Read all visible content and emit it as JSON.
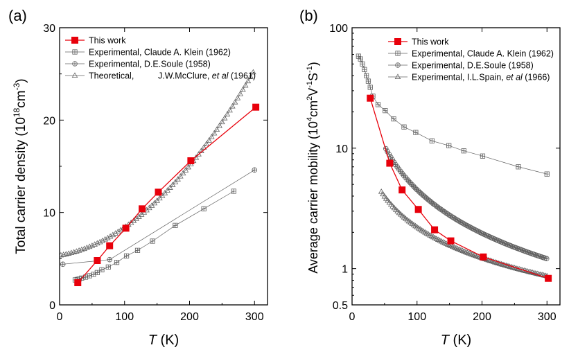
{
  "chart_data": [
    {
      "panel_label": "(a)",
      "type": "line",
      "xlabel_italic": "T",
      "xlabel_unit": " (K)",
      "ylabel_main": "Total carrier density (10",
      "ylabel_sup1": "18",
      "ylabel_mid": "cm",
      "ylabel_sup2": "-3",
      "ylabel_end": ")",
      "xlim": [
        0,
        320
      ],
      "ylim": [
        0,
        30
      ],
      "xticks": [
        0,
        100,
        200,
        300
      ],
      "yticks": [
        0,
        10,
        20,
        30
      ],
      "legend_position": "top-left",
      "series": [
        {
          "legend": "This work",
          "marker": "filled-square",
          "color": "#e8000b",
          "x": [
            28,
            58,
            77,
            102,
            127,
            152,
            202,
            302
          ],
          "y": [
            2.4,
            4.8,
            6.4,
            8.3,
            10.4,
            12.2,
            15.6,
            21.4
          ]
        },
        {
          "legend": "Experimental, Claude A. Klein (1962)",
          "marker": "square-plus",
          "color": "#606060",
          "x": [
            24,
            27,
            30,
            34,
            40,
            46,
            52,
            58,
            65,
            75,
            88,
            103,
            120,
            143,
            178,
            222,
            268
          ],
          "y": [
            2.7,
            2.75,
            2.8,
            2.9,
            3.0,
            3.15,
            3.3,
            3.5,
            3.8,
            4.1,
            4.6,
            5.3,
            5.9,
            6.9,
            8.6,
            10.4,
            12.3
          ]
        },
        {
          "legend": "Experimental, D.E.Soule (1958)",
          "marker": "circle-plus",
          "color": "#606060",
          "x": [
            5,
            77,
            300
          ],
          "y": [
            4.4,
            4.9,
            14.6
          ]
        },
        {
          "legend": "Theoretical,",
          "legend_tail_plain": "J.W.McClure, ",
          "legend_tail_italic": "et al",
          "legend_tail_end": " (1961)",
          "marker": "triangle",
          "color": "#606060",
          "x_start": 2,
          "x_end": 300,
          "x_step": 4,
          "y_model": "5.35 + 0.012*x + 0.000183*x^2"
        }
      ]
    },
    {
      "panel_label": "(b)",
      "type": "line",
      "yscale": "log",
      "xlabel_italic": "T",
      "xlabel_unit": " (K)",
      "ylabel_main": "Average carrier mobility (10",
      "ylabel_sup1": "4",
      "ylabel_mid": "cm",
      "ylabel_sup2": "2",
      "ylabel_mid2": "V",
      "ylabel_sup3": "-1",
      "ylabel_mid3": "S",
      "ylabel_sup4": "-1",
      "ylabel_end": ")",
      "xlim": [
        0,
        320
      ],
      "ylim": [
        0.5,
        100
      ],
      "xticks": [
        0,
        100,
        200,
        300
      ],
      "yticks": [
        0.5,
        1,
        10,
        100
      ],
      "ytick_labels": [
        "0.5",
        "1",
        "10",
        "100"
      ],
      "legend_position": "top-right",
      "series": [
        {
          "legend": "This work",
          "marker": "filled-square",
          "color": "#e8000b",
          "x": [
            28,
            58,
            77,
            102,
            127,
            152,
            202,
            302
          ],
          "y": [
            26,
            7.5,
            4.5,
            3.1,
            2.1,
            1.7,
            1.25,
            0.83
          ]
        },
        {
          "legend": "Experimental, Claude A. Klein (1962)",
          "marker": "square-plus",
          "color": "#606060",
          "x": [
            10,
            13,
            16,
            19,
            22,
            25,
            28,
            32,
            40,
            51,
            64,
            80,
            98,
            123,
            149,
            172,
            201,
            256,
            300
          ],
          "y": [
            58,
            55,
            50,
            45,
            40,
            36,
            32,
            27,
            23,
            20.5,
            17.5,
            15,
            13.5,
            11.5,
            10.5,
            9.5,
            8.6,
            7.0,
            6.1
          ]
        },
        {
          "legend": "Experimental, D.E.Soule (1958)",
          "marker": "circle-plus",
          "color": "#606060",
          "x_start": 52,
          "x_end": 300,
          "x_step": 2.5,
          "y_model": "9.9*(52/x)^1.2"
        },
        {
          "legend": "Experimental, I.L.Spain, ",
          "legend_italic": "et al",
          "legend_end": " (1966)",
          "marker": "triangle",
          "color": "#606060",
          "x_start": 45,
          "x_end": 300,
          "x_step": 2.5,
          "y_model": "4.35*(45/x)^0.85"
        }
      ]
    }
  ]
}
